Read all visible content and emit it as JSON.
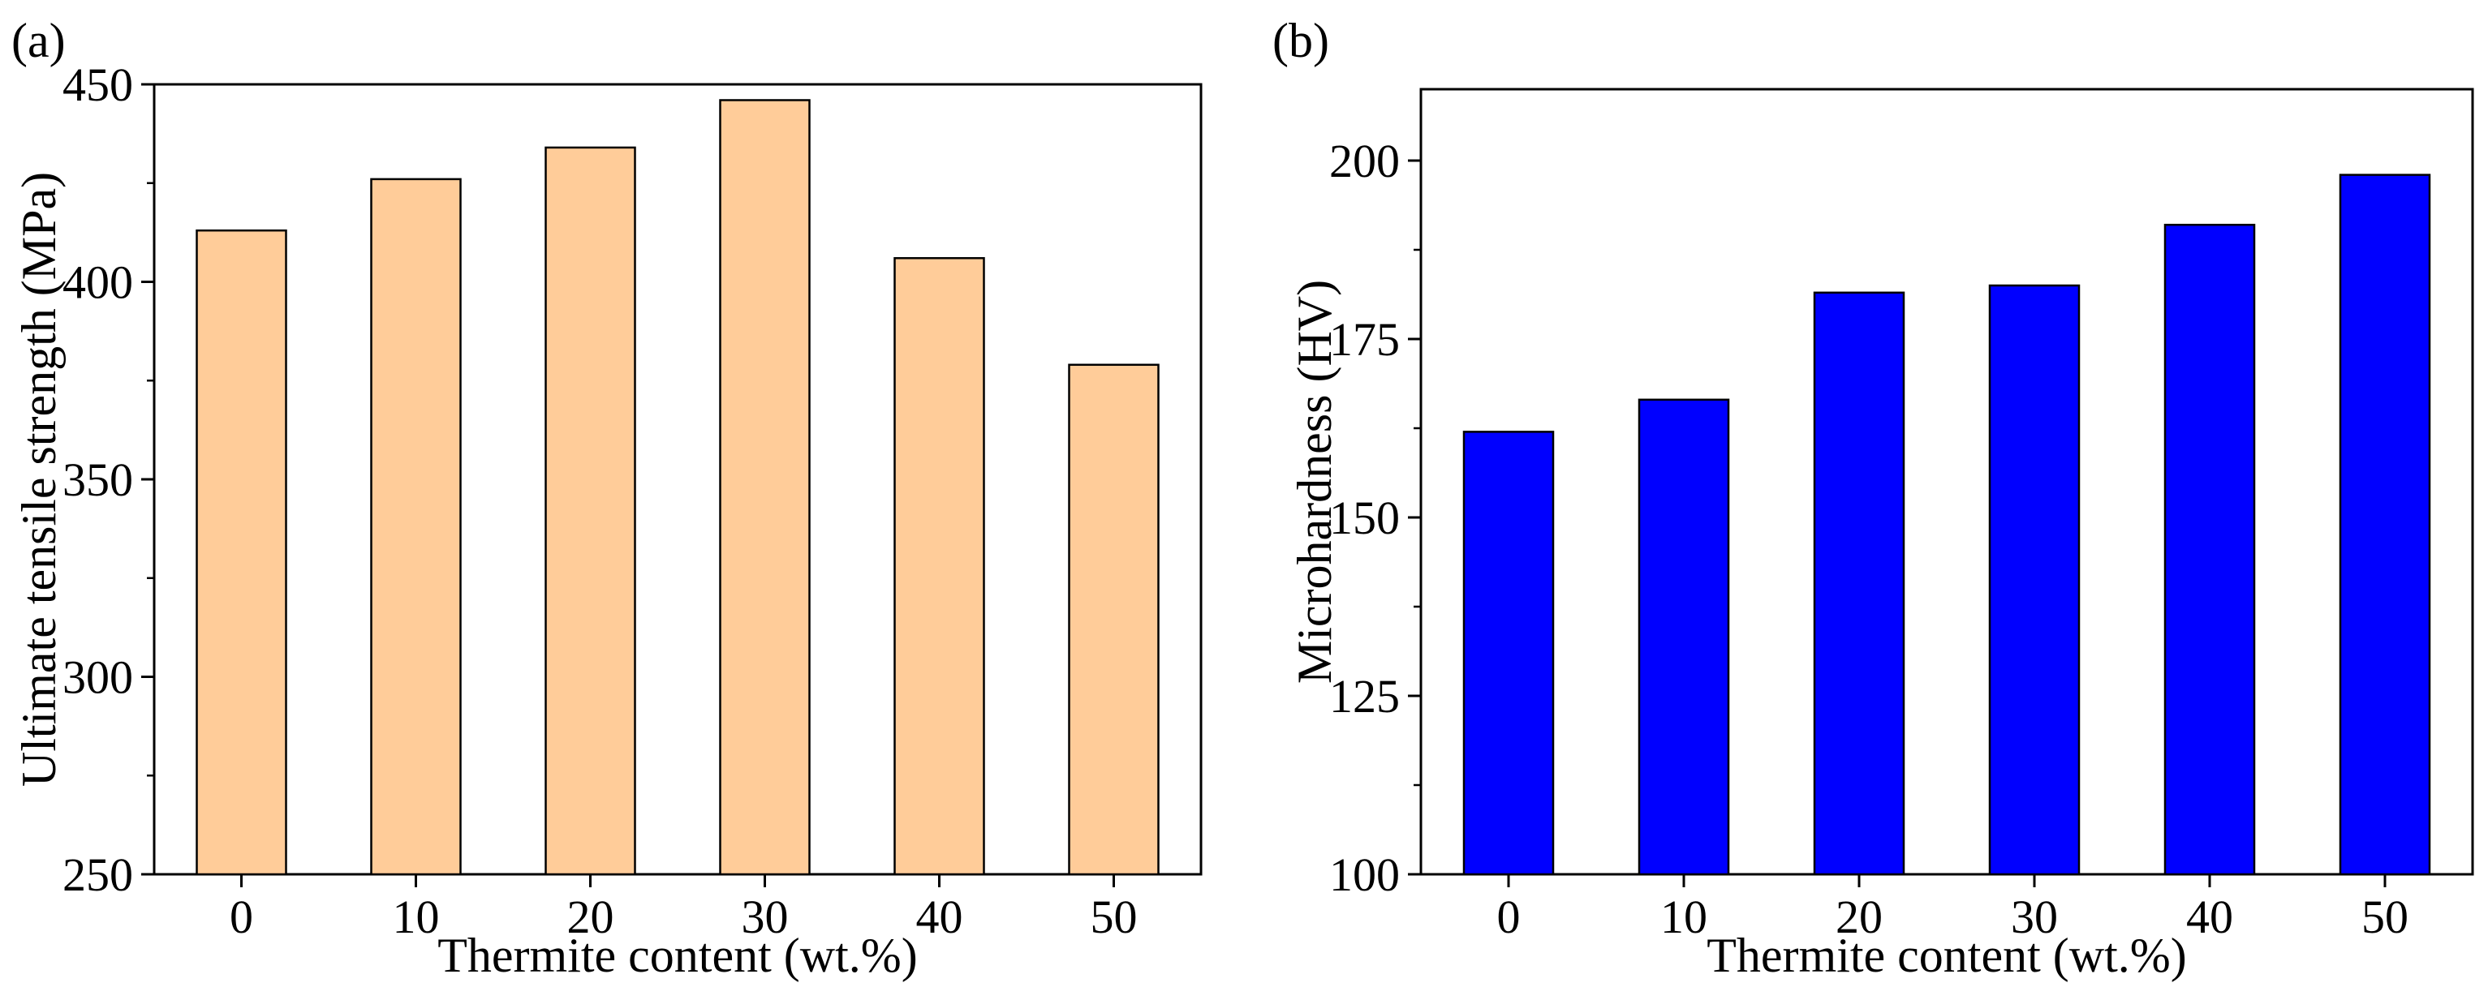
{
  "chart_data": [
    {
      "type": "bar",
      "panel_label": "(a)",
      "title": "",
      "xlabel": "Thermite content (wt.%)",
      "ylabel": "Ultimate tensile strength (MPa)",
      "categories": [
        "0",
        "10",
        "20",
        "30",
        "40",
        "50"
      ],
      "values": [
        413,
        426,
        434,
        446,
        406,
        379
      ],
      "ylim": [
        250,
        450
      ],
      "yticks": [
        250,
        300,
        350,
        400,
        450
      ],
      "bar_color": "#ffcc99",
      "grid": false,
      "legend": "none"
    },
    {
      "type": "bar",
      "panel_label": "(b)",
      "title": "",
      "xlabel": "Thermite content (wt.%)",
      "ylabel": "Microhardness (HV)",
      "categories": [
        "0",
        "10",
        "20",
        "30",
        "40",
        "50"
      ],
      "values": [
        162,
        166.5,
        181.5,
        182.5,
        191,
        198
      ],
      "ylim": [
        100,
        210
      ],
      "yticks": [
        100,
        125,
        150,
        175,
        200
      ],
      "bar_color": "#0000ff",
      "grid": false,
      "legend": "none"
    }
  ]
}
